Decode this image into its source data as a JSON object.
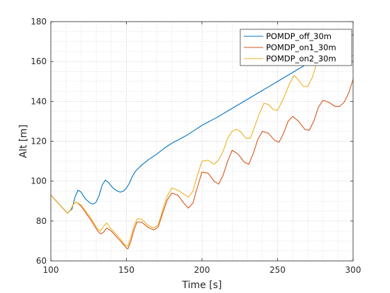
{
  "chart_data": {
    "type": "line",
    "title": "",
    "xlabel": "Time [s]",
    "ylabel": "Alt [m]",
    "xlim": [
      100,
      300
    ],
    "ylim": [
      60,
      180
    ],
    "xticks": [
      100,
      150,
      200,
      250,
      300
    ],
    "yticks": [
      60,
      80,
      100,
      120,
      140,
      160,
      180
    ],
    "grid": true,
    "minor_grid": true,
    "legend_position": "top-right",
    "series": [
      {
        "name": "POMDP_off_30m",
        "color": "#0072BD",
        "x": [
          100,
          106,
          111,
          114,
          116,
          118,
          120,
          123,
          126,
          128,
          130,
          132,
          134,
          136,
          138,
          140,
          142,
          144,
          146,
          148,
          150,
          152,
          154,
          156,
          158,
          160,
          165,
          170,
          175,
          180,
          185,
          190,
          195,
          200,
          210,
          220,
          230,
          240,
          250,
          260,
          270,
          280,
          290,
          300
        ],
        "y": [
          93,
          88,
          84,
          86,
          92,
          95.5,
          94.5,
          91,
          89,
          88.5,
          89.5,
          93,
          98,
          100.5,
          99.5,
          97.5,
          96,
          95,
          94.5,
          95,
          96.5,
          99,
          102.5,
          105,
          106.5,
          108,
          111,
          113.5,
          116.5,
          119,
          121,
          123,
          125.5,
          128,
          132,
          136.5,
          141,
          145.5,
          150,
          154.5,
          159,
          163.5,
          169,
          173.5
        ]
      },
      {
        "name": "POMDP_on1_30m",
        "color": "#D95319",
        "x": [
          100,
          106,
          111,
          113,
          115,
          117,
          120,
          126,
          131,
          133,
          135,
          137,
          140,
          146,
          150,
          151,
          153,
          155,
          157,
          160,
          164,
          168,
          171,
          174,
          177,
          180,
          184,
          188,
          191,
          194,
          197,
          200,
          204,
          208,
          211,
          214,
          217,
          220,
          224,
          228,
          231,
          234,
          237,
          240,
          244,
          248,
          251,
          254,
          257,
          260,
          264,
          268,
          271,
          274,
          277,
          280,
          284,
          288,
          291,
          294,
          297,
          300
        ],
        "y": [
          93,
          88,
          84,
          85.5,
          88.5,
          89.5,
          87.5,
          81,
          75,
          73.5,
          74.5,
          76.5,
          75,
          70,
          66.5,
          66,
          70,
          75.5,
          79.5,
          79.5,
          77,
          75.5,
          77,
          84,
          90.5,
          94,
          93,
          89,
          86.5,
          89,
          97,
          104.5,
          104,
          100,
          98.5,
          103,
          110,
          115.5,
          113.5,
          109.5,
          108.5,
          114,
          121,
          125,
          124,
          120.5,
          119.5,
          124,
          130,
          132.5,
          130,
          126,
          125.5,
          130,
          137,
          140.5,
          139.5,
          137.5,
          137.5,
          139.5,
          144,
          151
        ]
      },
      {
        "name": "POMDP_on2_30m",
        "color": "#EDB120",
        "x": [
          100,
          106,
          111,
          113,
          115,
          117,
          120,
          126,
          131,
          133,
          135,
          137,
          140,
          146,
          149,
          151,
          153,
          155,
          157,
          160,
          164,
          168,
          171,
          174,
          177,
          180,
          184,
          188,
          191,
          194,
          197,
          200,
          204,
          208,
          211,
          214,
          217,
          220,
          223,
          226,
          229,
          232,
          235,
          238,
          241,
          244,
          247,
          250,
          254,
          258,
          261,
          264,
          267,
          270,
          273,
          276,
          279,
          282,
          285,
          288,
          291,
          294,
          297,
          300
        ],
        "y": [
          93,
          88,
          84,
          85.5,
          88.5,
          89.5,
          88,
          82,
          76,
          75,
          77.5,
          79,
          76,
          71,
          68,
          67.5,
          72,
          77.5,
          81,
          81,
          78,
          76.5,
          78,
          85.5,
          92.5,
          96.5,
          95.5,
          93.5,
          92,
          95,
          103,
          110,
          110.5,
          108.5,
          110.5,
          115,
          121.5,
          125,
          126,
          124.5,
          121.5,
          121.5,
          127.5,
          134,
          139,
          138.5,
          136,
          135.5,
          141.5,
          149,
          153,
          150.5,
          147.5,
          147.5,
          152,
          159.5,
          166,
          168,
          165.5,
          163,
          163,
          163,
          162.5,
          163
        ]
      }
    ]
  }
}
